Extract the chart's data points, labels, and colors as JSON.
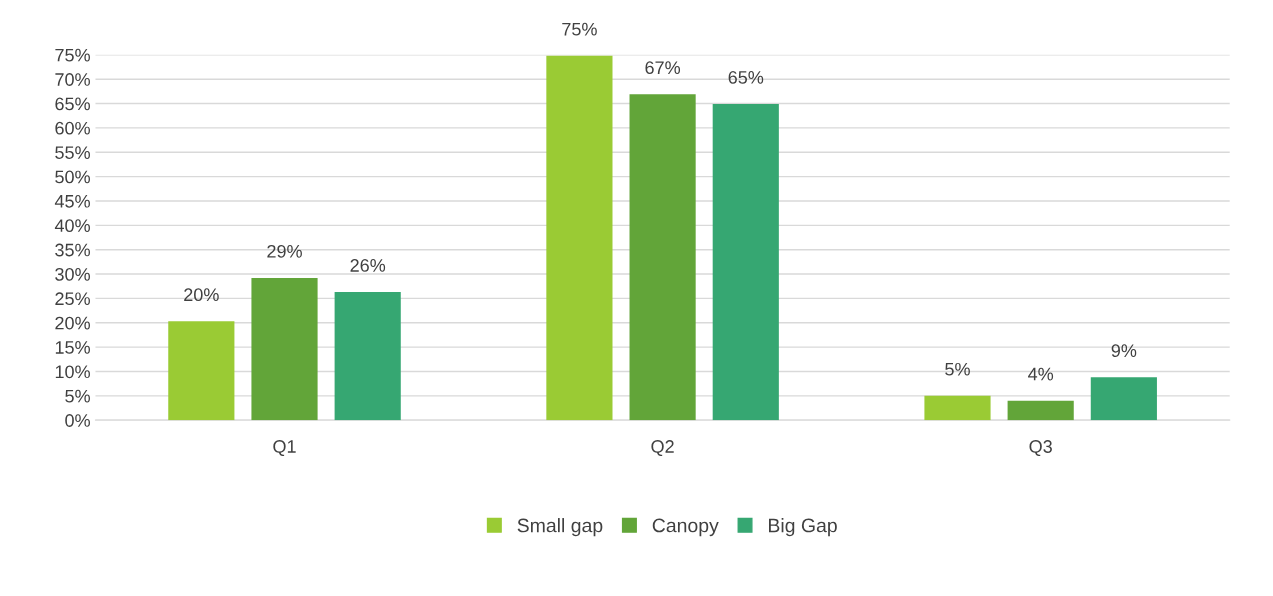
{
  "chart_data": {
    "type": "bar",
    "categories": [
      "Q1",
      "Q2",
      "Q3"
    ],
    "series": [
      {
        "name": "Small gap",
        "color": "#9acb34",
        "values": [
          20.3,
          74.8,
          5.0
        ],
        "value_labels": [
          "20%",
          "75%",
          "5%"
        ]
      },
      {
        "name": "Canopy",
        "color": "#62a539",
        "values": [
          29.2,
          66.9,
          4.0
        ],
        "value_labels": [
          "29%",
          "67%",
          "4%"
        ]
      },
      {
        "name": "Big Gap",
        "color": "#36a772",
        "values": [
          26.3,
          64.9,
          8.8
        ],
        "value_labels": [
          "26%",
          "65%",
          "9%"
        ]
      }
    ],
    "ylim": [
      0,
      75
    ],
    "yticks": [
      {
        "value": 0,
        "label": "0%"
      },
      {
        "value": 5,
        "label": "5%"
      },
      {
        "value": 10,
        "label": "10%"
      },
      {
        "value": 15,
        "label": "15%"
      },
      {
        "value": 20,
        "label": "20%"
      },
      {
        "value": 25,
        "label": "25%"
      },
      {
        "value": 30,
        "label": "30%"
      },
      {
        "value": 35,
        "label": "35%"
      },
      {
        "value": 40,
        "label": "40%"
      },
      {
        "value": 45,
        "label": "45%"
      },
      {
        "value": 50,
        "label": "50%"
      },
      {
        "value": 55,
        "label": "55%"
      },
      {
        "value": 60,
        "label": "60%"
      },
      {
        "value": 65,
        "label": "65%"
      },
      {
        "value": 70,
        "label": "70%"
      },
      {
        "value": 75,
        "label": "75%"
      }
    ],
    "grid": "y",
    "legend": "bottom"
  }
}
